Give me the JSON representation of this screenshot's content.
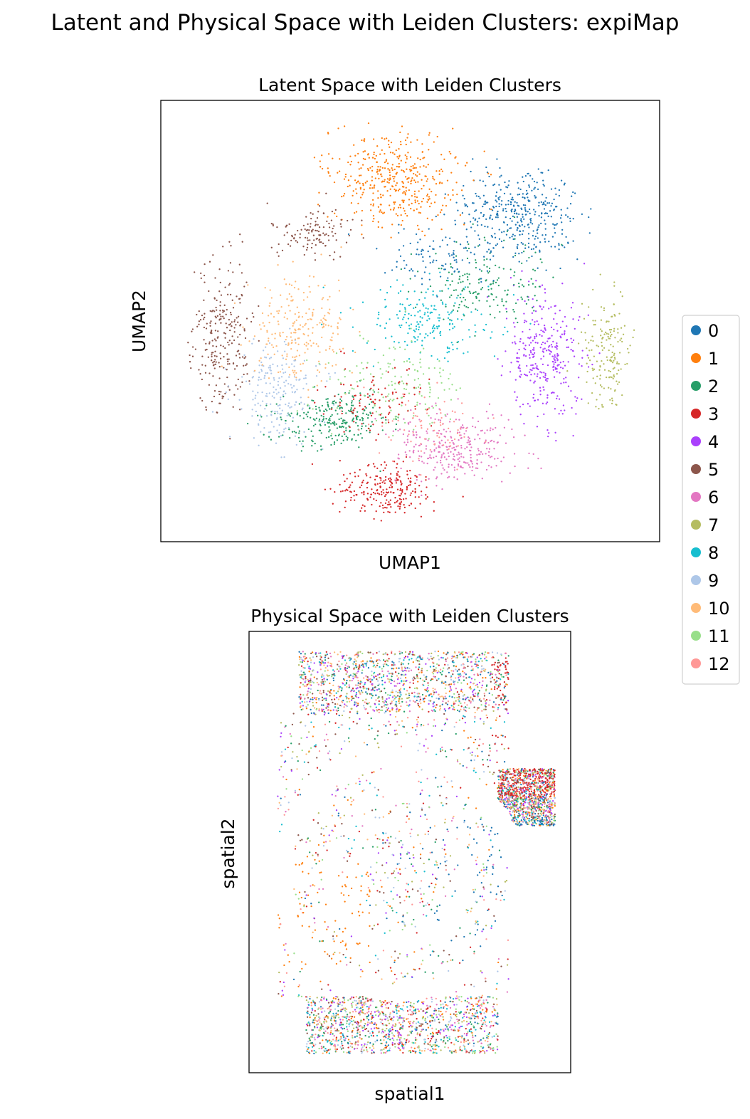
{
  "figure": {
    "suptitle": "Latent and Physical Space with Leiden Clusters: expiMap"
  },
  "chart_data": [
    {
      "type": "scatter",
      "title": "Latent Space with Leiden Clusters",
      "xlabel": "UMAP1",
      "ylabel": "UMAP2",
      "ticks": "none",
      "grid": false
    },
    {
      "type": "scatter",
      "title": "Physical Space with Leiden Clusters",
      "xlabel": "spatial1",
      "ylabel": "spatial2",
      "ticks": "none",
      "grid": false
    }
  ],
  "legend": {
    "placement": "right",
    "entries": [
      {
        "label": "0",
        "color": "#1f77b4"
      },
      {
        "label": "1",
        "color": "#ff7f0e"
      },
      {
        "label": "2",
        "color": "#279e68"
      },
      {
        "label": "3",
        "color": "#d62728"
      },
      {
        "label": "4",
        "color": "#aa40fc"
      },
      {
        "label": "5",
        "color": "#8c564b"
      },
      {
        "label": "6",
        "color": "#e377c2"
      },
      {
        "label": "7",
        "color": "#b5bd61"
      },
      {
        "label": "8",
        "color": "#17becf"
      },
      {
        "label": "9",
        "color": "#aec7e8"
      },
      {
        "label": "10",
        "color": "#ffbb78"
      },
      {
        "label": "11",
        "color": "#98df8a"
      },
      {
        "label": "12",
        "color": "#ff9896"
      }
    ]
  }
}
